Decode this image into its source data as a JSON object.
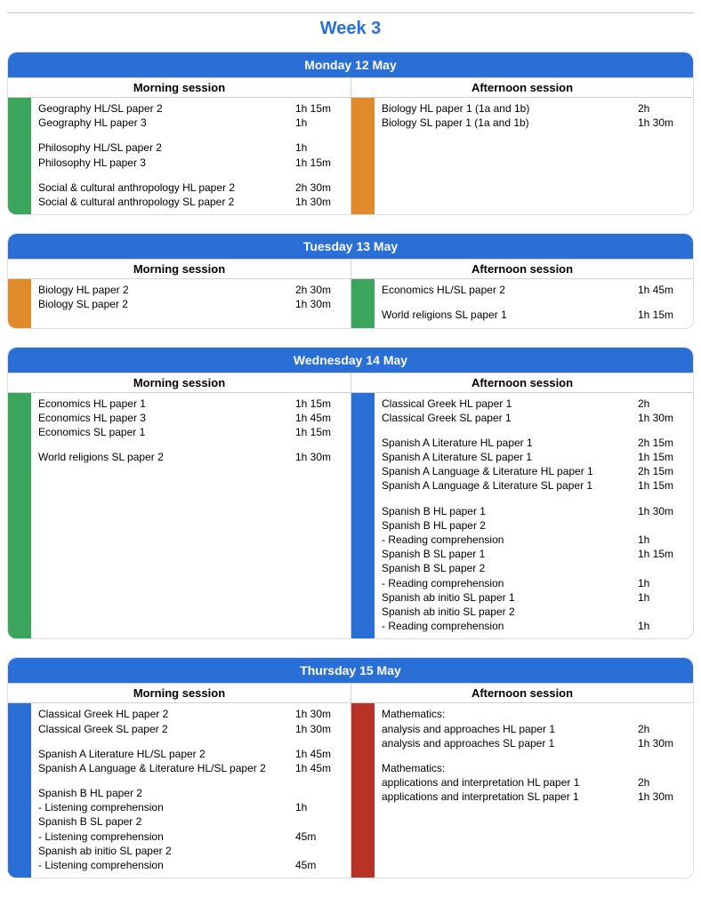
{
  "title": "Week 3",
  "colors": {
    "header_bg": "#2a6fd6",
    "header_text": "#ffffff",
    "border": "#d0d0d0",
    "green": "#3ba55d",
    "orange": "#e08a2c",
    "blue": "#2a6fd6",
    "red": "#b93226",
    "title_color": "#2a6fd6"
  },
  "session_labels": {
    "morning": "Morning session",
    "afternoon": "Afternoon session"
  },
  "days": [
    {
      "date": "Monday 12 May",
      "morning": {
        "stripe_color": "#3ba55d",
        "rows": [
          {
            "name": "Geography HL/SL paper 2",
            "dur": "1h 15m"
          },
          {
            "name": "Geography HL paper 3",
            "dur": "1h"
          },
          {
            "spacer": true
          },
          {
            "name": "Philosophy HL/SL paper 2",
            "dur": "1h"
          },
          {
            "name": "Philosophy HL paper 3",
            "dur": "1h 15m"
          },
          {
            "spacer": true
          },
          {
            "name": "Social & cultural anthropology HL paper 2",
            "dur": "2h 30m"
          },
          {
            "name": "Social & cultural anthropology SL paper 2",
            "dur": "1h 30m"
          }
        ]
      },
      "afternoon": {
        "stripe_color": "#e08a2c",
        "rows": [
          {
            "name": "Biology HL paper 1 (1a and 1b)",
            "dur": "2h"
          },
          {
            "name": "Biology SL paper 1 (1a and 1b)",
            "dur": "1h 30m"
          }
        ]
      }
    },
    {
      "date": "Tuesday 13 May",
      "morning": {
        "stripe_color": "#e08a2c",
        "rows": [
          {
            "name": "Biology HL paper 2",
            "dur": "2h 30m"
          },
          {
            "name": "Biology SL paper 2",
            "dur": "1h 30m"
          }
        ]
      },
      "afternoon": {
        "stripe_color": "#3ba55d",
        "rows": [
          {
            "name": "Economics HL/SL paper 2",
            "dur": "1h 45m"
          },
          {
            "spacer": true
          },
          {
            "name": "World religions SL paper 1",
            "dur": "1h 15m"
          }
        ]
      }
    },
    {
      "date": "Wednesday 14 May",
      "morning": {
        "stripe_color": "#3ba55d",
        "rows": [
          {
            "name": "Economics HL paper 1",
            "dur": "1h 15m"
          },
          {
            "name": "Economics HL paper 3",
            "dur": "1h 45m"
          },
          {
            "name": "Economics SL paper 1",
            "dur": "1h 15m"
          },
          {
            "spacer": true
          },
          {
            "name": "World religions SL paper 2",
            "dur": "1h 30m"
          }
        ]
      },
      "afternoon": {
        "stripe_color": "#2a6fd6",
        "rows": [
          {
            "name": "Classical Greek HL paper 1",
            "dur": "2h"
          },
          {
            "name": "Classical Greek SL paper 1",
            "dur": "1h 30m"
          },
          {
            "spacer": true
          },
          {
            "name": "Spanish A Literature HL paper 1",
            "dur": "2h 15m"
          },
          {
            "name": "Spanish A Literature SL paper 1",
            "dur": "1h 15m"
          },
          {
            "name": "Spanish A Language & Literature HL paper 1",
            "dur": "2h 15m"
          },
          {
            "name": "Spanish A Language & Literature SL paper 1",
            "dur": "1h 15m"
          },
          {
            "spacer": true
          },
          {
            "name": "Spanish B HL paper 1",
            "dur": "1h 30m"
          },
          {
            "name": "Spanish B HL paper 2",
            "dur": ""
          },
          {
            "name": "- Reading comprehension",
            "dur": "1h"
          },
          {
            "name": "Spanish B SL paper 1",
            "dur": "1h 15m"
          },
          {
            "name": "Spanish B SL paper 2",
            "dur": ""
          },
          {
            "name": "- Reading comprehension",
            "dur": "1h"
          },
          {
            "name": "Spanish ab initio SL paper 1",
            "dur": "1h"
          },
          {
            "name": "Spanish ab initio SL paper 2",
            "dur": ""
          },
          {
            "name": "- Reading comprehension",
            "dur": "1h"
          }
        ]
      }
    },
    {
      "date": "Thursday 15 May",
      "morning": {
        "stripe_color": "#2a6fd6",
        "rows": [
          {
            "name": "Classical Greek HL paper 2",
            "dur": "1h 30m"
          },
          {
            "name": "Classical Greek SL paper 2",
            "dur": "1h 30m"
          },
          {
            "spacer": true
          },
          {
            "name": "Spanish A Literature HL/SL paper 2",
            "dur": "1h 45m"
          },
          {
            "name": "Spanish A Language & Literature HL/SL paper 2",
            "dur": "1h 45m"
          },
          {
            "spacer": true
          },
          {
            "name": "Spanish B HL paper 2",
            "dur": ""
          },
          {
            "name": "- Listening comprehension",
            "dur": "1h"
          },
          {
            "name": "Spanish B SL paper 2",
            "dur": ""
          },
          {
            "name": "- Listening comprehension",
            "dur": "45m"
          },
          {
            "name": "Spanish ab initio SL paper 2",
            "dur": ""
          },
          {
            "name": "- Listening comprehension",
            "dur": "45m"
          }
        ]
      },
      "afternoon": {
        "stripe_color": "#b93226",
        "rows": [
          {
            "name": "Mathematics:",
            "dur": ""
          },
          {
            "name": "analysis and approaches HL paper 1",
            "dur": "2h"
          },
          {
            "name": "analysis and approaches SL paper 1",
            "dur": "1h 30m"
          },
          {
            "spacer": true
          },
          {
            "name": "Mathematics:",
            "dur": ""
          },
          {
            "name": "applications and interpretation HL paper 1",
            "dur": "2h"
          },
          {
            "name": "applications and interpretation SL paper 1",
            "dur": "1h 30m"
          }
        ]
      }
    }
  ]
}
